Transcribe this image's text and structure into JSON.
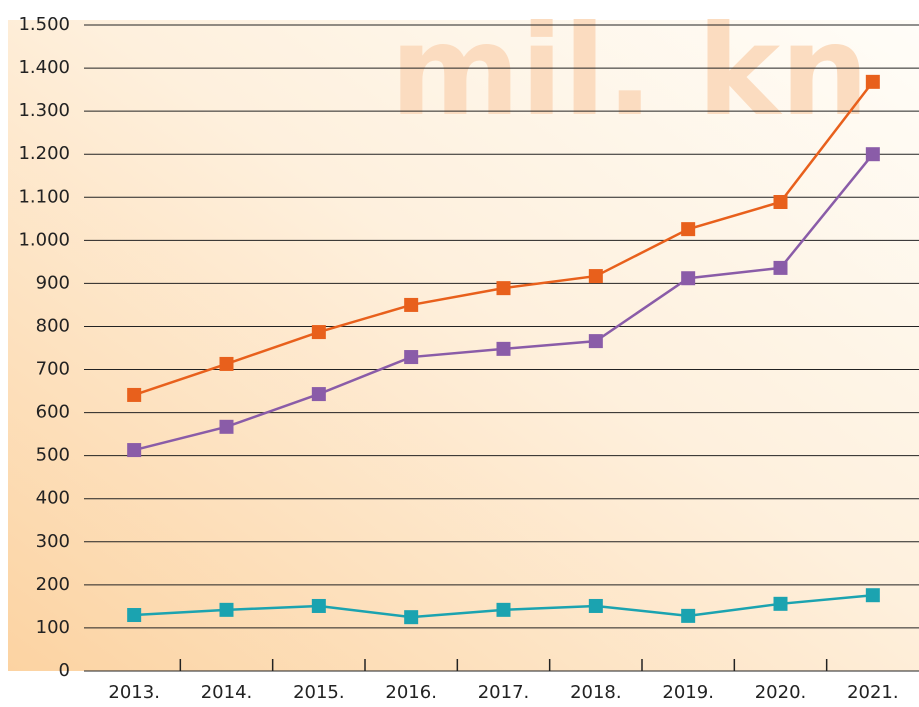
{
  "chart_data": {
    "type": "line",
    "annotation": "mil. kn",
    "categories": [
      "2013.",
      "2014.",
      "2015.",
      "2016.",
      "2017.",
      "2018.",
      "2019.",
      "2020.",
      "2021."
    ],
    "series": [
      {
        "color": "#e8601c",
        "values": [
          641,
          713,
          787,
          850,
          889,
          917,
          1026,
          1089,
          1368
        ]
      },
      {
        "color": "#8a5ca8",
        "values": [
          513,
          567,
          643,
          729,
          748,
          766,
          912,
          936,
          1200
        ]
      },
      {
        "color": "#1ba3b0",
        "values": [
          130,
          142,
          151,
          125,
          142,
          151,
          128,
          156,
          176
        ]
      }
    ],
    "ylim": [
      0,
      1500
    ],
    "yticks": [
      0,
      100,
      200,
      300,
      400,
      500,
      600,
      700,
      800,
      900,
      {
        "value": 1000,
        "label": "1.000"
      },
      {
        "value": 1100,
        "label": "1.100"
      },
      {
        "value": 1200,
        "label": "1.200"
      },
      {
        "value": 1300,
        "label": "1.300"
      },
      {
        "value": 1400,
        "label": "1.400"
      },
      {
        "value": 1500,
        "label": "1.500"
      }
    ],
    "grid": true
  }
}
